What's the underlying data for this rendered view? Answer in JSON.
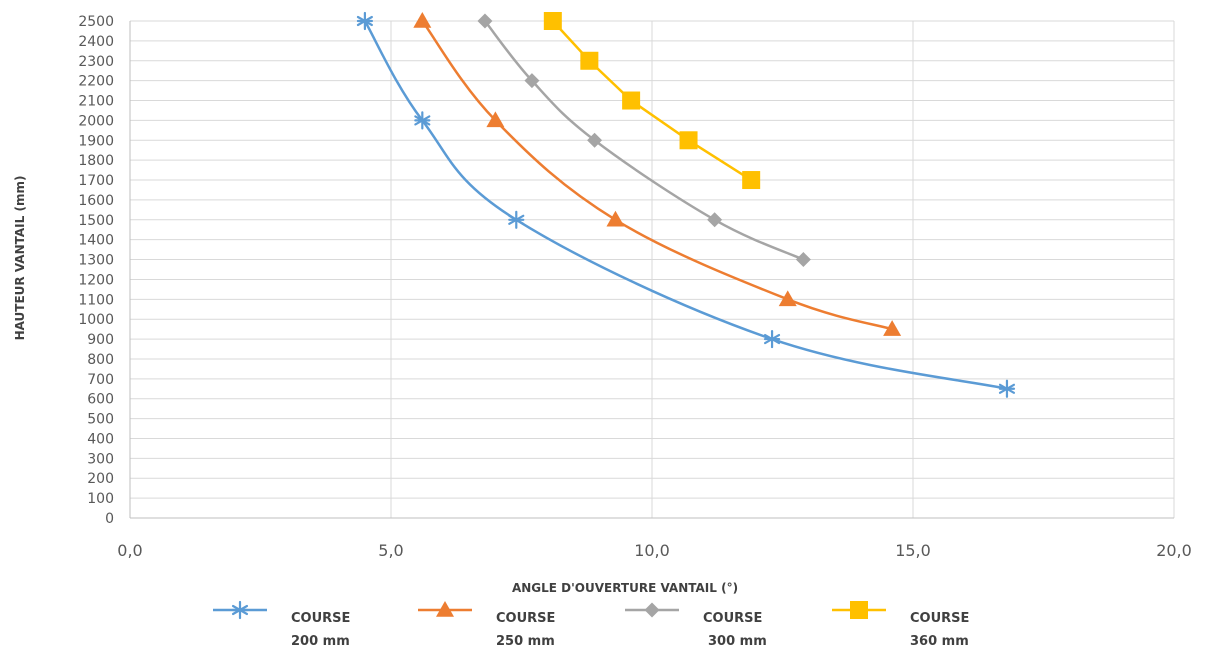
{
  "chart_data": {
    "type": "line",
    "xlabel": "ANGLE D'OUVERTURE VANTAIL (°)",
    "ylabel": "HAUTEUR VANTAIL (mm)",
    "xlim": [
      0,
      20
    ],
    "ylim": [
      0,
      2500
    ],
    "x_ticks": [
      "0,0",
      "5,0",
      "10,0",
      "15,0",
      "20,0"
    ],
    "y_ticks": [
      "0",
      "100",
      "200",
      "300",
      "400",
      "500",
      "600",
      "700",
      "800",
      "900",
      "1000",
      "1100",
      "1200",
      "1300",
      "1400",
      "1500",
      "1600",
      "1700",
      "1800",
      "1900",
      "2000",
      "2100",
      "2200",
      "2300",
      "2400",
      "2500"
    ],
    "grid": "vertical and horizontal",
    "legend_position": "bottom",
    "series": [
      {
        "name": [
          "COURSE",
          "200 mm"
        ],
        "color": "#5B9BD5",
        "marker": "asterisk",
        "smooth": true,
        "points": [
          [
            4.5,
            2500
          ],
          [
            5.6,
            2000
          ],
          [
            7.4,
            1500
          ],
          [
            12.3,
            900
          ],
          [
            16.8,
            650
          ]
        ]
      },
      {
        "name": [
          "COURSE",
          "250 mm"
        ],
        "color": "#ED7D31",
        "marker": "triangle",
        "smooth": true,
        "points": [
          [
            5.6,
            2500
          ],
          [
            7.0,
            2000
          ],
          [
            9.3,
            1500
          ],
          [
            12.6,
            1100
          ],
          [
            14.6,
            950
          ]
        ]
      },
      {
        "name": [
          "COURSE",
          "300 mm"
        ],
        "color": "#A5A5A5",
        "marker": "diamond",
        "smooth": true,
        "points": [
          [
            6.8,
            2500
          ],
          [
            7.7,
            2200
          ],
          [
            8.9,
            1900
          ],
          [
            11.2,
            1500
          ],
          [
            12.9,
            1300
          ]
        ]
      },
      {
        "name": [
          "COURSE",
          "360 mm"
        ],
        "color": "#FFC000",
        "marker": "square",
        "smooth": false,
        "points": [
          [
            8.1,
            2500
          ],
          [
            8.8,
            2300
          ],
          [
            9.6,
            2100
          ],
          [
            10.7,
            1900
          ],
          [
            11.9,
            1700
          ]
        ]
      }
    ]
  }
}
